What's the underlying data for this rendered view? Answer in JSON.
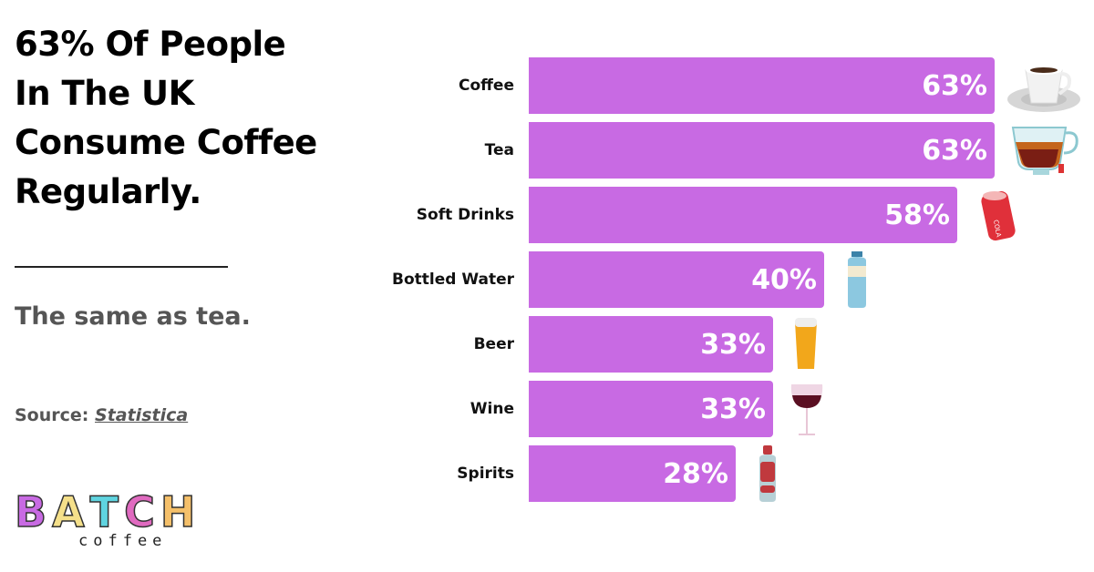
{
  "headline": {
    "lines": [
      "63% Of People",
      "In The UK",
      "Consume Coffee",
      "Regularly."
    ]
  },
  "subtitle": "The same as tea.",
  "source": {
    "prefix": "Source:",
    "link_text": "Statistica"
  },
  "logo": {
    "letters": [
      {
        "char": "B",
        "color": "#c86ae3"
      },
      {
        "char": "A",
        "color": "#f5e08a"
      },
      {
        "char": "T",
        "color": "#5fd4e0"
      },
      {
        "char": "C",
        "color": "#e06ac0"
      },
      {
        "char": "H",
        "color": "#f5c06a"
      }
    ],
    "subtext": "coffee"
  },
  "colors": {
    "bar": "#c86ae3",
    "bar_label": "#ffffff",
    "title": "#000000",
    "subtitle": "#555555"
  },
  "chart_data": {
    "type": "bar",
    "orientation": "horizontal",
    "title": "63% Of People In The UK Consume Coffee Regularly.",
    "subtitle": "The same as tea.",
    "categories": [
      "Coffee",
      "Tea",
      "Soft Drinks",
      "Bottled Water",
      "Beer",
      "Wine",
      "Spirits"
    ],
    "values": [
      63,
      63,
      58,
      40,
      33,
      33,
      28
    ],
    "value_labels": [
      "63%",
      "63%",
      "58%",
      "40%",
      "33%",
      "33%",
      "28%"
    ],
    "icons": [
      "coffee-cup-icon",
      "tea-cup-icon",
      "soda-can-icon",
      "water-bottle-icon",
      "beer-glass-icon",
      "wine-glass-icon",
      "spirits-bottle-icon"
    ],
    "xlabel": "",
    "ylabel": "",
    "xlim": [
      0,
      63
    ],
    "grid": false,
    "legend": "none",
    "source": "Statistica"
  }
}
